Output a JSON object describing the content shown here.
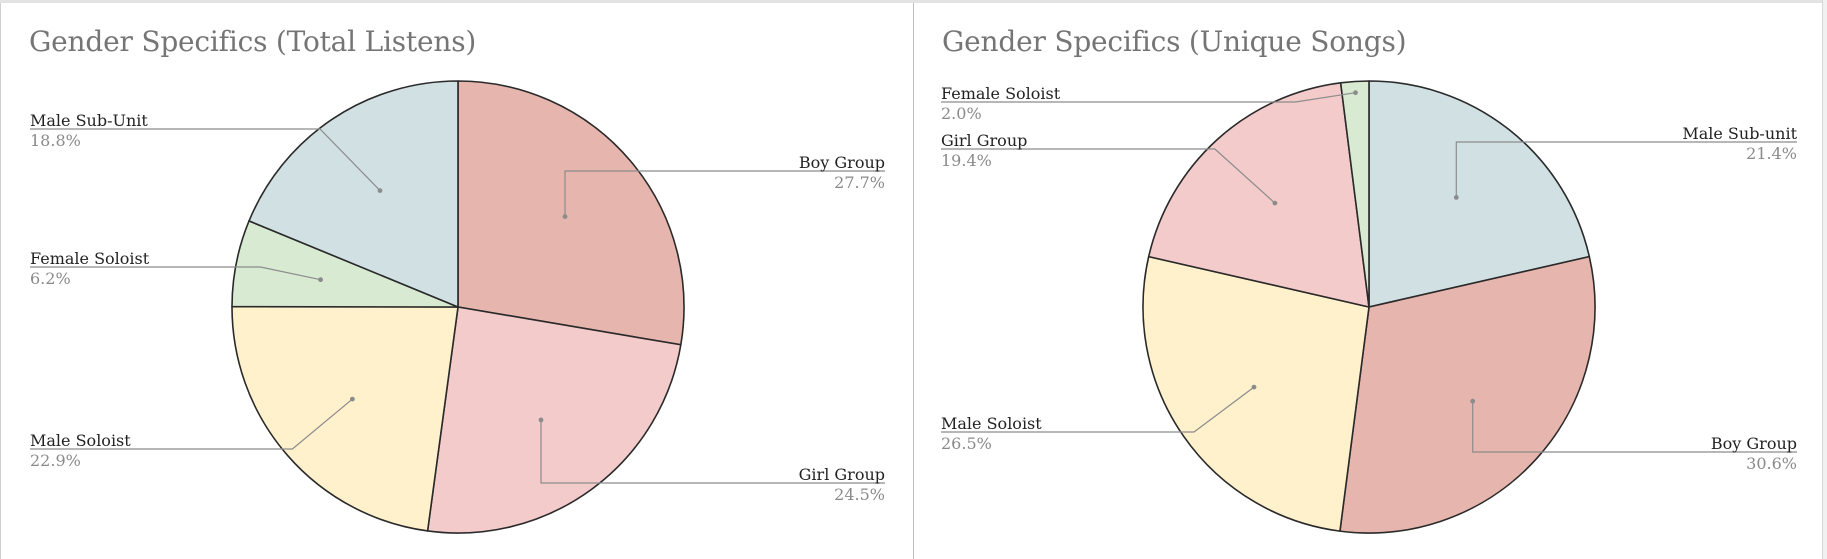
{
  "colors": {
    "Boy Group": "#e6b5ad",
    "Girl Group": "#f4cbcb",
    "Male Soloist": "#fff1cc",
    "Female Soloist": "#d9ead3",
    "Male Sub-Unit": "#d0e0e3",
    "Male Sub-unit": "#d0e0e3",
    "outline": "#2a2a2a",
    "leader": "#8c8c8c"
  },
  "chart_data": [
    {
      "type": "pie",
      "title": "Gender Specifics (Total Listens)",
      "slices": [
        {
          "label": "Boy Group",
          "value": 27.7,
          "pct_text": "27.7%"
        },
        {
          "label": "Girl Group",
          "value": 24.5,
          "pct_text": "24.5%"
        },
        {
          "label": "Male Soloist",
          "value": 22.9,
          "pct_text": "22.9%"
        },
        {
          "label": "Female Soloist",
          "value": 6.2,
          "pct_text": "6.2%"
        },
        {
          "label": "Male Sub-Unit",
          "value": 18.8,
          "pct_text": "18.8%"
        }
      ],
      "start": "12 o'clock",
      "direction": "clockwise",
      "legend": "none"
    },
    {
      "type": "pie",
      "title": "Gender Specifics (Unique Songs)",
      "slices": [
        {
          "label": "Male Sub-unit",
          "value": 21.4,
          "pct_text": "21.4%"
        },
        {
          "label": "Boy Group",
          "value": 30.6,
          "pct_text": "30.6%"
        },
        {
          "label": "Male Soloist",
          "value": 26.5,
          "pct_text": "26.5%"
        },
        {
          "label": "Girl Group",
          "value": 19.4,
          "pct_text": "19.4%"
        },
        {
          "label": "Female Soloist",
          "value": 2.0,
          "pct_text": "2.0%"
        }
      ],
      "start": "12 o'clock",
      "direction": "clockwise",
      "legend": "none"
    }
  ]
}
